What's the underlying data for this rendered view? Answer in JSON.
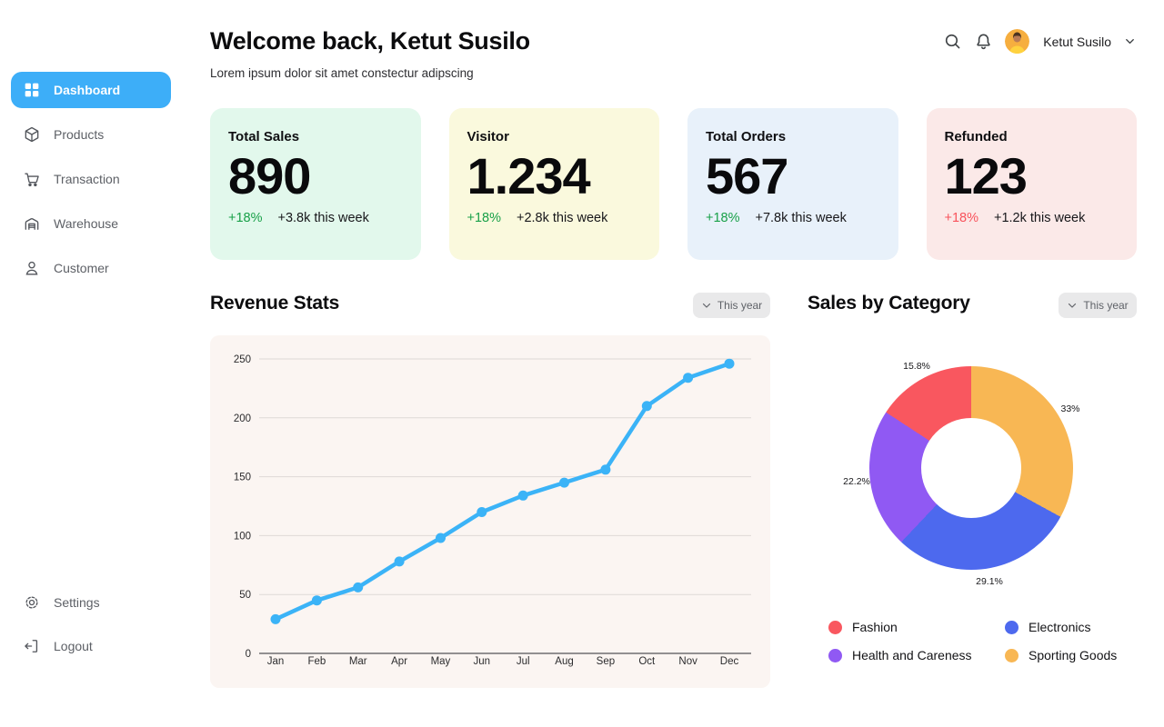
{
  "sidebar": {
    "active_color": "#3DAEF8",
    "items": [
      {
        "label": "Dashboard",
        "icon": "grid-icon",
        "active": true
      },
      {
        "label": "Products",
        "icon": "box-icon",
        "active": false
      },
      {
        "label": "Transaction",
        "icon": "cart-icon",
        "active": false
      },
      {
        "label": "Warehouse",
        "icon": "warehouse-icon",
        "active": false
      },
      {
        "label": "Customer",
        "icon": "person-icon",
        "active": false
      }
    ],
    "footer_items": [
      {
        "label": "Settings",
        "icon": "gear-icon",
        "active": false
      },
      {
        "label": "Logout",
        "icon": "logout-icon",
        "active": false
      }
    ]
  },
  "header": {
    "title": "Welcome back, Ketut Susilo",
    "subtitle": "Lorem ipsum dolor sit amet constectur adipscing",
    "user_name": "Ketut Susilo",
    "icons": [
      "search-icon",
      "bell-icon",
      "avatar",
      "chevron-down-icon"
    ]
  },
  "stat_cards": [
    {
      "title": "Total Sales",
      "value": "890",
      "change": "+18%",
      "change_color": "#18A048",
      "detail": "+3.8k this week",
      "bg": "#E2F8EC"
    },
    {
      "title": "Visitor",
      "value": "1.234",
      "change": "+18%",
      "change_color": "#18A048",
      "detail": "+2.8k this week",
      "bg": "#FAF9DD"
    },
    {
      "title": "Total Orders",
      "value": "567",
      "change": "+18%",
      "change_color": "#18A048",
      "detail": "+7.8k this week",
      "bg": "#E8F1FA"
    },
    {
      "title": "Refunded",
      "value": "123",
      "change": "+18%",
      "change_color": "#F8525B",
      "detail": "+1.2k this week",
      "bg": "#FBE9E8"
    }
  ],
  "revenue_section": {
    "title": "Revenue Stats",
    "filter_label": "This year"
  },
  "category_section": {
    "title": "Sales by Category",
    "filter_label": "This year"
  },
  "chart_data": [
    {
      "type": "line",
      "title": "Revenue Stats",
      "x": [
        "Jan",
        "Feb",
        "Mar",
        "Apr",
        "May",
        "Jun",
        "Jul",
        "Aug",
        "Sep",
        "Oct",
        "Nov",
        "Dec"
      ],
      "values": [
        29,
        45,
        56,
        78,
        98,
        120,
        134,
        145,
        156,
        210,
        234,
        246
      ],
      "ylim": [
        0,
        250
      ],
      "yticks": [
        0,
        50,
        100,
        150,
        200,
        250
      ],
      "grid": true,
      "legend_position": "none",
      "line_color": "#3BB3F7",
      "point_color": "#3BB3F7",
      "panel_bg": "#FBF5F2"
    },
    {
      "type": "pie",
      "title": "Sales by Category",
      "donut": true,
      "start_angle_deg": 0,
      "direction": "clockwise",
      "slices": [
        {
          "label": "Sporting Goods",
          "value": 33.0,
          "display": "33%",
          "color": "#F8B754"
        },
        {
          "label": "Electronics",
          "value": 29.1,
          "display": "29.1%",
          "color": "#4D69EE"
        },
        {
          "label": "Health and Careness",
          "value": 22.2,
          "display": "22.2%",
          "color": "#9059F3"
        },
        {
          "label": "Fashion",
          "value": 15.8,
          "display": "15.8%",
          "color": "#F9575F"
        }
      ],
      "legend": [
        {
          "label": "Fashion",
          "color": "#F9575F"
        },
        {
          "label": "Electronics",
          "color": "#4D69EE"
        },
        {
          "label": "Health and Careness",
          "color": "#9059F3"
        },
        {
          "label": "Sporting Goods",
          "color": "#F8B754"
        }
      ],
      "legend_position": "bottom"
    }
  ]
}
